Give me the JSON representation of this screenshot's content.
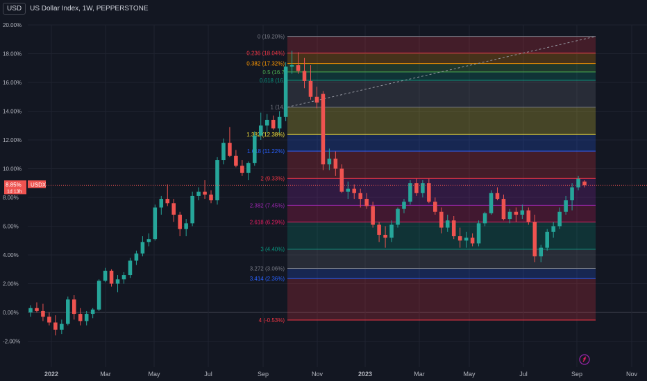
{
  "header": {
    "symbol_box": "USD",
    "title": "US Dollar Index, 1W, PEPPERSTONE"
  },
  "price_tag": {
    "value": "8.85%",
    "symbol": "USDX",
    "sub": "1d 13h"
  },
  "colors": {
    "background": "#131722",
    "up": "#26a69a",
    "down": "#ef5350",
    "text": "#b2b5be",
    "grid": "#1f2330"
  },
  "chart_data": {
    "type": "candlestick",
    "y_unit": "%",
    "ylim": [
      -3,
      21
    ],
    "y_ticks": [
      "20.00%",
      "18.00%",
      "16.00%",
      "14.00%",
      "12.00%",
      "10.00%",
      "8.00%",
      "6.00%",
      "4.00%",
      "2.00%",
      "0.00%",
      "-2.00%"
    ],
    "x_ticks": [
      "2022",
      "Mar",
      "May",
      "Jul",
      "Sep",
      "Nov",
      "2023",
      "Mar",
      "May",
      "Jul",
      "Sep",
      "Nov"
    ],
    "last_value": 8.85,
    "fib_levels": [
      {
        "ratio": "0",
        "label": "0 (19.20%)",
        "value": 19.2,
        "color": "#787b86"
      },
      {
        "ratio": "0.236",
        "label": "0.236 (18.04%)",
        "value": 18.04,
        "color": "#f23645"
      },
      {
        "ratio": "0.382",
        "label": "0.382 (17.32%)",
        "value": 17.32,
        "color": "#ff9800"
      },
      {
        "ratio": "0.5",
        "label": "0.5 (16.7",
        "value": 16.73,
        "color": "#4caf50"
      },
      {
        "ratio": "0.618",
        "label": "0.618 (16.",
        "value": 16.15,
        "color": "#089981"
      },
      {
        "ratio": "1",
        "label": "1 (14.",
        "value": 14.28,
        "color": "#787b86"
      },
      {
        "ratio": "1.382",
        "label": "1.382 (12.38%)",
        "value": 12.38,
        "color": "#ffeb3b"
      },
      {
        "ratio": "1.618",
        "label": "1.618 (11.22%)",
        "value": 11.22,
        "color": "#2962ff"
      },
      {
        "ratio": "2",
        "label": "2 (9.33%)",
        "value": 9.33,
        "color": "#f23645"
      },
      {
        "ratio": "2.382",
        "label": "2.382 (7.45%)",
        "value": 7.45,
        "color": "#9c27b0"
      },
      {
        "ratio": "2.618",
        "label": "2.618 (6.29%)",
        "value": 6.29,
        "color": "#e91e63"
      },
      {
        "ratio": "3",
        "label": "3 (4.40%)",
        "value": 4.4,
        "color": "#089981"
      },
      {
        "ratio": "3.272",
        "label": "3.272 (3.06%)",
        "value": 3.06,
        "color": "#787b86"
      },
      {
        "ratio": "3.414",
        "label": "3.414 (2.36%)",
        "value": 2.36,
        "color": "#2962ff"
      },
      {
        "ratio": "4",
        "label": "4 (-0.53%)",
        "value": -0.53,
        "color": "#f23645"
      }
    ],
    "candles": [
      [
        0.0,
        0.5,
        -0.3,
        0.3
      ],
      [
        0.3,
        0.7,
        0.0,
        0.1
      ],
      [
        0.1,
        0.6,
        -0.6,
        -0.3
      ],
      [
        -0.3,
        0.0,
        -0.9,
        -0.7
      ],
      [
        -0.7,
        -0.2,
        -1.6,
        -1.2
      ],
      [
        -1.2,
        -0.5,
        -1.5,
        -0.8
      ],
      [
        -0.8,
        1.1,
        -0.9,
        0.9
      ],
      [
        0.9,
        1.2,
        -0.5,
        -0.1
      ],
      [
        -0.1,
        0.3,
        -0.9,
        -0.6
      ],
      [
        -0.6,
        0.1,
        -0.9,
        -0.1
      ],
      [
        -0.1,
        0.3,
        -0.4,
        0.2
      ],
      [
        0.2,
        2.3,
        0.1,
        2.2
      ],
      [
        2.2,
        3.1,
        2.1,
        2.9
      ],
      [
        2.9,
        3.0,
        1.8,
        2.0
      ],
      [
        2.0,
        2.6,
        1.4,
        2.3
      ],
      [
        2.3,
        2.8,
        2.0,
        2.6
      ],
      [
        2.6,
        3.8,
        2.4,
        3.6
      ],
      [
        3.6,
        4.3,
        3.3,
        4.1
      ],
      [
        4.1,
        5.3,
        3.9,
        4.9
      ],
      [
        4.9,
        5.5,
        4.6,
        5.1
      ],
      [
        5.1,
        7.5,
        5.0,
        7.3
      ],
      [
        7.3,
        8.1,
        6.8,
        7.9
      ],
      [
        7.9,
        8.9,
        7.4,
        7.6
      ],
      [
        7.6,
        7.9,
        6.3,
        6.8
      ],
      [
        6.8,
        7.0,
        5.3,
        5.8
      ],
      [
        5.8,
        6.5,
        5.3,
        6.2
      ],
      [
        6.2,
        8.4,
        6.0,
        8.1
      ],
      [
        8.1,
        8.7,
        7.8,
        8.4
      ],
      [
        8.4,
        9.2,
        7.9,
        8.2
      ],
      [
        8.2,
        8.5,
        7.6,
        7.8
      ],
      [
        7.8,
        10.8,
        7.5,
        10.6
      ],
      [
        10.6,
        12.1,
        10.3,
        11.8
      ],
      [
        11.8,
        12.9,
        10.8,
        10.9
      ],
      [
        10.9,
        11.3,
        10.1,
        10.2
      ],
      [
        10.2,
        10.6,
        9.5,
        9.7
      ],
      [
        9.7,
        10.5,
        9.2,
        10.4
      ],
      [
        10.4,
        12.6,
        10.2,
        12.3
      ],
      [
        12.3,
        13.9,
        12.0,
        13.0
      ],
      [
        13.0,
        13.8,
        12.5,
        13.4
      ],
      [
        13.4,
        13.7,
        12.7,
        12.8
      ],
      [
        12.8,
        14.0,
        12.5,
        13.6
      ],
      [
        13.6,
        17.4,
        13.3,
        17.1
      ],
      [
        17.1,
        18.2,
        16.6,
        17.2
      ],
      [
        17.2,
        18.1,
        16.6,
        16.8
      ],
      [
        16.8,
        17.7,
        15.6,
        16.1
      ],
      [
        16.1,
        17.2,
        14.8,
        15.0
      ],
      [
        15.0,
        15.7,
        14.2,
        14.6
      ],
      [
        15.2,
        15.4,
        9.9,
        10.3
      ],
      [
        10.3,
        11.4,
        9.9,
        10.7
      ],
      [
        10.7,
        11.2,
        9.5,
        10.0
      ],
      [
        10.0,
        10.3,
        8.3,
        8.4
      ],
      [
        8.4,
        9.1,
        7.9,
        8.6
      ],
      [
        8.6,
        8.9,
        7.9,
        8.3
      ],
      [
        8.3,
        8.6,
        7.3,
        7.9
      ],
      [
        7.9,
        8.3,
        7.2,
        7.4
      ],
      [
        7.4,
        7.7,
        5.9,
        6.1
      ],
      [
        6.1,
        6.3,
        4.9,
        5.4
      ],
      [
        5.4,
        6.0,
        4.5,
        5.2
      ],
      [
        5.2,
        6.4,
        4.9,
        6.1
      ],
      [
        6.1,
        7.3,
        5.9,
        7.2
      ],
      [
        7.2,
        7.9,
        6.9,
        7.7
      ],
      [
        7.7,
        9.2,
        7.5,
        9.0
      ],
      [
        9.0,
        9.3,
        8.1,
        8.3
      ],
      [
        8.3,
        9.2,
        8.0,
        9.0
      ],
      [
        9.0,
        9.3,
        7.6,
        7.7
      ],
      [
        7.7,
        8.0,
        6.8,
        7.0
      ],
      [
        7.0,
        7.3,
        5.5,
        5.9
      ],
      [
        5.9,
        6.8,
        5.6,
        6.4
      ],
      [
        6.4,
        6.7,
        5.1,
        5.3
      ],
      [
        5.3,
        5.9,
        4.5,
        5.0
      ],
      [
        5.0,
        5.6,
        4.5,
        5.2
      ],
      [
        5.2,
        5.5,
        4.6,
        4.8
      ],
      [
        4.8,
        6.4,
        4.6,
        6.2
      ],
      [
        6.2,
        7.0,
        6.0,
        6.9
      ],
      [
        6.9,
        8.5,
        6.8,
        8.3
      ],
      [
        8.3,
        8.7,
        7.8,
        7.9
      ],
      [
        7.9,
        8.2,
        6.4,
        6.5
      ],
      [
        6.5,
        7.2,
        6.2,
        7.0
      ],
      [
        7.0,
        7.3,
        6.3,
        6.8
      ],
      [
        6.8,
        7.5,
        6.5,
        7.1
      ],
      [
        7.1,
        7.3,
        6.1,
        6.3
      ],
      [
        6.3,
        6.8,
        3.5,
        3.9
      ],
      [
        3.9,
        4.7,
        3.5,
        4.5
      ],
      [
        4.5,
        5.8,
        4.3,
        5.6
      ],
      [
        5.6,
        6.3,
        5.2,
        6.0
      ],
      [
        6.0,
        7.3,
        5.8,
        7.0
      ],
      [
        7.0,
        8.1,
        6.8,
        7.8
      ],
      [
        7.8,
        9.0,
        7.1,
        8.7
      ],
      [
        8.7,
        9.5,
        8.5,
        9.3
      ],
      [
        9.1,
        9.2,
        8.7,
        8.85
      ]
    ]
  }
}
